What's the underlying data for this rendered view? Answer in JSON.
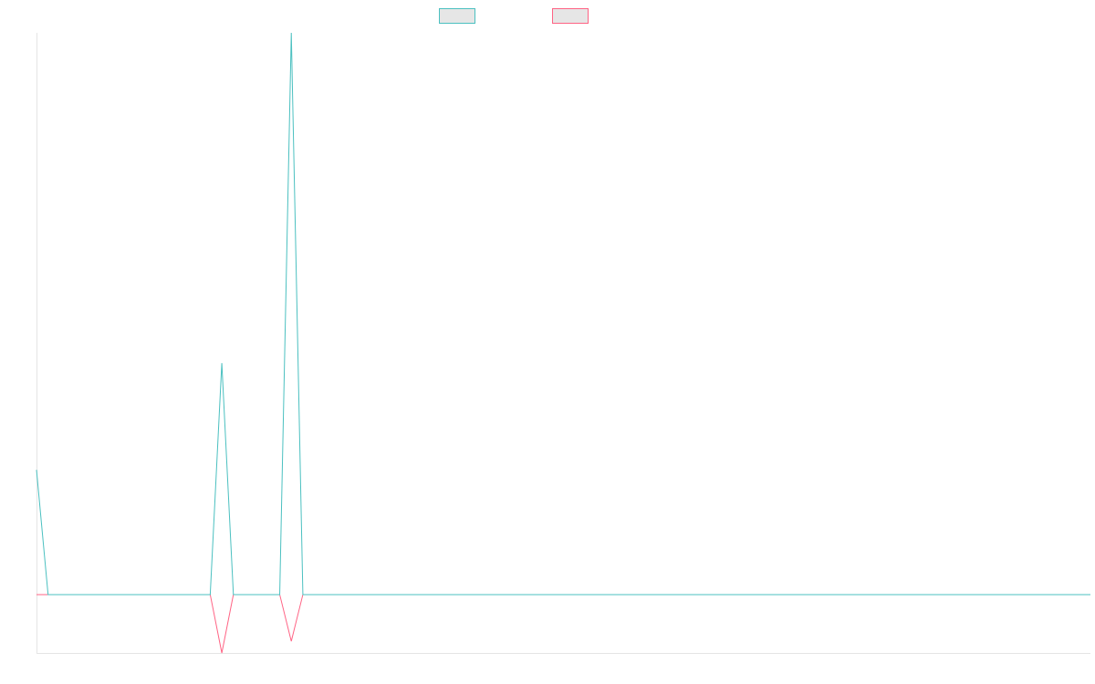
{
  "chart_data": {
    "type": "line",
    "categories": [
      null,
      null,
      null,
      null,
      null,
      null,
      null,
      null,
      null,
      null,
      null,
      null,
      null,
      null,
      null,
      null,
      null,
      null,
      null,
      null,
      null,
      null,
      null,
      null,
      null,
      null,
      null,
      null,
      null,
      null,
      null,
      null,
      null,
      null,
      null,
      null,
      null,
      null,
      null,
      null,
      null,
      null,
      null,
      null,
      null,
      null,
      null,
      null,
      null,
      null,
      null,
      null,
      null,
      null,
      null,
      null,
      null,
      null,
      null,
      null,
      null,
      null,
      null,
      null,
      null,
      null,
      null,
      null,
      null,
      null,
      null,
      null,
      null,
      null,
      null,
      null,
      null,
      null,
      null,
      null,
      null,
      null,
      null,
      null,
      null,
      null,
      null,
      null,
      null,
      null,
      null,
      null
    ],
    "series": [
      {
        "color": "#4bc0c0",
        "values": [
          22.2,
          0,
          0,
          0,
          0,
          0,
          0,
          0,
          0,
          0,
          0,
          0,
          0,
          0,
          0,
          0,
          41.2,
          0,
          0,
          0,
          0,
          0,
          100,
          0,
          0,
          0,
          0,
          0,
          0,
          0,
          0,
          0,
          0,
          0,
          0,
          0,
          0,
          0,
          0,
          0,
          0,
          0,
          0,
          0,
          0,
          0,
          0,
          0,
          0,
          0,
          0,
          0,
          0,
          0,
          0,
          0,
          0,
          0,
          0,
          0,
          0,
          0,
          0,
          0,
          0,
          0,
          0,
          0,
          0,
          0,
          0,
          0,
          0,
          0,
          0,
          0,
          0,
          0,
          0,
          0,
          0,
          0,
          0,
          0,
          0,
          0,
          0,
          0,
          0,
          0,
          0,
          0
        ]
      },
      {
        "color": "#ff6384",
        "values": [
          0,
          0,
          0,
          0,
          0,
          0,
          0,
          0,
          0,
          0,
          0,
          0,
          0,
          0,
          0,
          0,
          -10.4,
          0,
          0,
          0,
          0,
          0,
          -8.3,
          0,
          0,
          0,
          0,
          0,
          0,
          0,
          0,
          0,
          0,
          0,
          0,
          0,
          0,
          0,
          0,
          0,
          0,
          0,
          0,
          0,
          0,
          0,
          0,
          0,
          0,
          0,
          0,
          0,
          0,
          0,
          0,
          0,
          0,
          0,
          0,
          0,
          0,
          0,
          0,
          0,
          0,
          0,
          0,
          0,
          0,
          0,
          0,
          0,
          0,
          0,
          0,
          0,
          0,
          0,
          0,
          0,
          0,
          0,
          0,
          0,
          0,
          0,
          0,
          0,
          0,
          0,
          0,
          0
        ]
      }
    ],
    "ylim": [
      -10.4,
      100
    ]
  }
}
